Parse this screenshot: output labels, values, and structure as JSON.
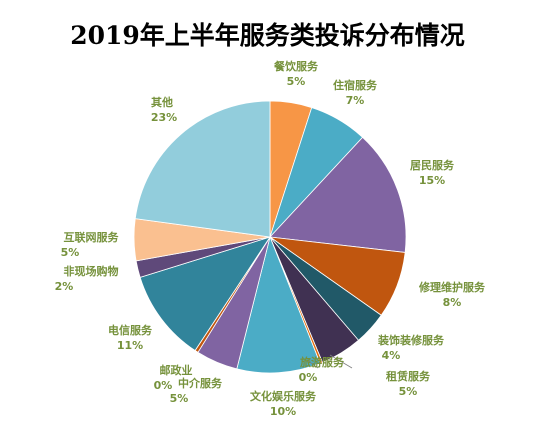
{
  "chart_data": {
    "type": "pie",
    "title": "2019年上半年服务类投诉分布情况",
    "label_color": "#76923C",
    "slices": [
      {
        "label": "餐饮服务",
        "value_text": "5%",
        "value": 5,
        "color": "#F79646"
      },
      {
        "label": "住宿服务",
        "value_text": "7%",
        "value": 7,
        "color": "#4BACC6"
      },
      {
        "label": "居民服务",
        "value_text": "15%",
        "value": 15,
        "color": "#8064A2"
      },
      {
        "label": "修理维护服务",
        "value_text": "8%",
        "value": 8,
        "color": "#C0560F"
      },
      {
        "label": "装饰装修服务",
        "value_text": "4%",
        "value": 4,
        "color": "#215968"
      },
      {
        "label": "租赁服务",
        "value_text": "5%",
        "value": 5,
        "color": "#403152"
      },
      {
        "label": "旅游服务",
        "value_text": "0%",
        "value": 0.3,
        "color": "#E46C0A"
      },
      {
        "label": "文化娱乐服务",
        "value_text": "10%",
        "value": 10,
        "color": "#4BACC6"
      },
      {
        "label": "中介服务",
        "value_text": "5%",
        "value": 5,
        "color": "#8064A2"
      },
      {
        "label": "邮政业",
        "value_text": "0%",
        "value": 0.4,
        "color": "#C0560F"
      },
      {
        "label": "电信服务",
        "value_text": "11%",
        "value": 11,
        "color": "#31849B"
      },
      {
        "label": "非现场购物",
        "value_text": "2%",
        "value": 2,
        "color": "#5F497A"
      },
      {
        "label": "互联网服务",
        "value_text": "5%",
        "value": 5,
        "color": "#FAC090"
      },
      {
        "label": "其他",
        "value_text": "23%",
        "value": 23,
        "color": "#92CDDC"
      }
    ]
  }
}
